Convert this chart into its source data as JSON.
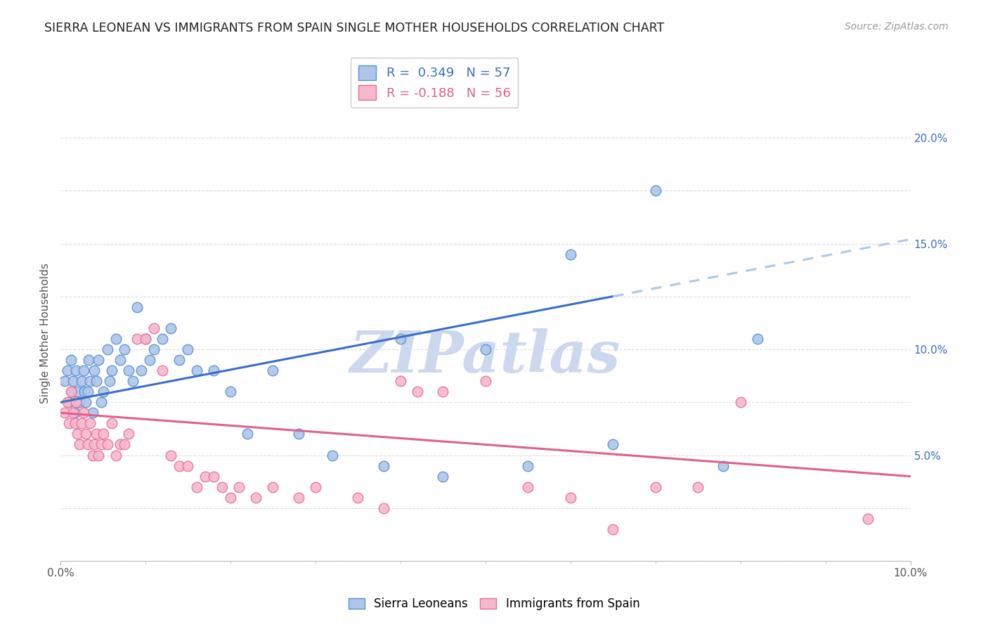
{
  "title": "SIERRA LEONEAN VS IMMIGRANTS FROM SPAIN SINGLE MOTHER HOUSEHOLDS CORRELATION CHART",
  "source": "Source: ZipAtlas.com",
  "ylabel": "Single Mother Households",
  "legend_entry1": "R =  0.349   N = 57",
  "legend_entry2": "R = -0.188   N = 56",
  "legend_label1": "Sierra Leoneans",
  "legend_label2": "Immigrants from Spain",
  "color_blue_fill": "#aec6e8",
  "color_pink_fill": "#f5b8cc",
  "color_blue_edge": "#5a8fd4",
  "color_pink_edge": "#e87098",
  "color_blue_line": "#3a6ec8",
  "color_pink_line": "#e06090",
  "color_blue_dash": "#b0c8e8",
  "watermark_text": "ZIPatlas",
  "watermark_color": "#ccd8ee",
  "background_color": "#ffffff",
  "grid_color": "#dddddd",
  "xlim": [
    0.0,
    10.0
  ],
  "ylim": [
    0.0,
    21.5
  ],
  "ytick_values": [
    5.0,
    10.0,
    15.0,
    20.0
  ],
  "blue_reg_x0": 0.0,
  "blue_reg_y0": 7.5,
  "blue_reg_x1": 10.0,
  "blue_reg_y1": 15.2,
  "blue_solid_end_x": 6.5,
  "pink_reg_x0": 0.0,
  "pink_reg_y0": 7.0,
  "pink_reg_x1": 10.0,
  "pink_reg_y1": 4.0,
  "blue_scatter_x": [
    0.05,
    0.08,
    0.1,
    0.12,
    0.13,
    0.15,
    0.17,
    0.18,
    0.2,
    0.22,
    0.25,
    0.27,
    0.28,
    0.3,
    0.32,
    0.33,
    0.35,
    0.38,
    0.4,
    0.42,
    0.45,
    0.48,
    0.5,
    0.55,
    0.58,
    0.6,
    0.65,
    0.7,
    0.75,
    0.8,
    0.85,
    0.9,
    0.95,
    1.0,
    1.05,
    1.1,
    1.2,
    1.3,
    1.4,
    1.5,
    1.6,
    1.8,
    2.0,
    2.2,
    2.5,
    2.8,
    3.2,
    3.8,
    4.0,
    4.5,
    5.0,
    5.5,
    6.0,
    6.5,
    7.0,
    7.8,
    8.2
  ],
  "blue_scatter_y": [
    8.5,
    9.0,
    7.5,
    9.5,
    8.0,
    8.5,
    7.0,
    9.0,
    8.0,
    7.5,
    8.5,
    9.0,
    8.0,
    7.5,
    8.0,
    9.5,
    8.5,
    7.0,
    9.0,
    8.5,
    9.5,
    7.5,
    8.0,
    10.0,
    8.5,
    9.0,
    10.5,
    9.5,
    10.0,
    9.0,
    8.5,
    12.0,
    9.0,
    10.5,
    9.5,
    10.0,
    10.5,
    11.0,
    9.5,
    10.0,
    9.0,
    9.0,
    8.0,
    6.0,
    9.0,
    6.0,
    5.0,
    4.5,
    10.5,
    4.0,
    10.0,
    4.5,
    14.5,
    5.5,
    17.5,
    4.5,
    10.5
  ],
  "pink_scatter_x": [
    0.05,
    0.08,
    0.1,
    0.12,
    0.15,
    0.17,
    0.18,
    0.2,
    0.22,
    0.25,
    0.27,
    0.3,
    0.32,
    0.35,
    0.38,
    0.4,
    0.42,
    0.45,
    0.48,
    0.5,
    0.55,
    0.6,
    0.65,
    0.7,
    0.75,
    0.8,
    0.9,
    1.0,
    1.1,
    1.2,
    1.3,
    1.4,
    1.5,
    1.6,
    1.7,
    1.8,
    1.9,
    2.0,
    2.1,
    2.3,
    2.5,
    2.8,
    3.0,
    3.5,
    3.8,
    4.0,
    4.5,
    5.0,
    5.5,
    6.0,
    6.5,
    7.0,
    7.5,
    8.0,
    9.5,
    4.2
  ],
  "pink_scatter_y": [
    7.0,
    7.5,
    6.5,
    8.0,
    7.0,
    6.5,
    7.5,
    6.0,
    5.5,
    6.5,
    7.0,
    6.0,
    5.5,
    6.5,
    5.0,
    5.5,
    6.0,
    5.0,
    5.5,
    6.0,
    5.5,
    6.5,
    5.0,
    5.5,
    5.5,
    6.0,
    10.5,
    10.5,
    11.0,
    9.0,
    5.0,
    4.5,
    4.5,
    3.5,
    4.0,
    4.0,
    3.5,
    3.0,
    3.5,
    3.0,
    3.5,
    3.0,
    3.5,
    3.0,
    2.5,
    8.5,
    8.0,
    8.5,
    3.5,
    3.0,
    1.5,
    3.5,
    3.5,
    7.5,
    2.0,
    8.0
  ]
}
